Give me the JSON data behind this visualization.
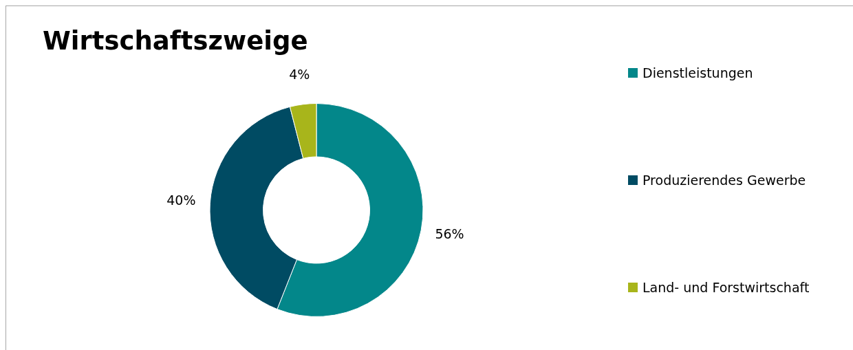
{
  "chart_data": {
    "type": "donut",
    "title": "Wirtschaftszweige",
    "categories": [
      "Dienstleistungen",
      "Produzierendes Gewerbe",
      "Land- und Forstwirtschaft"
    ],
    "values": [
      56,
      40,
      4
    ],
    "colors": [
      "#03878a",
      "#004b63",
      "#a8b51b"
    ],
    "value_labels": [
      "56%",
      "40%",
      "4%"
    ],
    "legend": "right"
  }
}
